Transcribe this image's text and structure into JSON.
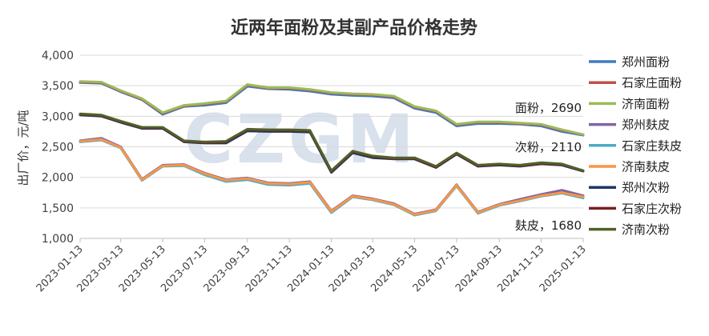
{
  "chart_data": {
    "type": "line",
    "title": "近两年面粉及其副产品价格走势",
    "ylabel": "出厂价，元/吨",
    "ylim": [
      1000,
      4000
    ],
    "yticks": [
      "1,000",
      "1,500",
      "2,000",
      "2,500",
      "3,000",
      "3,500",
      "4,000"
    ],
    "xticks": [
      "2023-01-13",
      "2023-03-13",
      "2023-05-13",
      "2023-07-13",
      "2023-09-13",
      "2023-11-13",
      "2024-01-13",
      "2024-03-13",
      "2024-05-13",
      "2024-07-13",
      "2024-09-13",
      "2024-11-13",
      "2025-01-13"
    ],
    "grid": true,
    "legend_position": "right",
    "watermark": "CZGM",
    "annotations": [
      {
        "text": "面粉，2690",
        "y": 2690
      },
      {
        "text": "次粉，2110",
        "y": 2110
      },
      {
        "text": "麸皮，1680",
        "y": 1680
      }
    ],
    "series": [
      {
        "name": "郑州面粉",
        "color": "#3E7CC4",
        "group": "flour",
        "x": [
          "2023-01-13",
          "2023-02-13",
          "2023-03-13",
          "2023-04-13",
          "2023-05-13",
          "2023-06-13",
          "2023-07-13",
          "2023-08-13",
          "2023-09-13",
          "2023-10-13",
          "2023-11-13",
          "2023-12-13",
          "2024-01-13",
          "2024-02-13",
          "2024-03-13",
          "2024-04-13",
          "2024-05-13",
          "2024-06-13",
          "2024-07-13",
          "2024-08-13",
          "2024-09-13",
          "2024-10-13",
          "2024-11-13",
          "2024-12-13",
          "2025-01-13"
        ],
        "y": [
          3550,
          3540,
          3400,
          3270,
          3030,
          3160,
          3180,
          3220,
          3490,
          3450,
          3440,
          3410,
          3360,
          3340,
          3330,
          3300,
          3130,
          3060,
          2840,
          2880,
          2880,
          2870,
          2840,
          2750,
          2690
        ]
      },
      {
        "name": "石家庄面粉",
        "color": "#C0504D",
        "group": "flour",
        "x": [
          "2023-01-13",
          "2023-02-13",
          "2023-03-13",
          "2023-04-13",
          "2023-05-13",
          "2023-06-13",
          "2023-07-13",
          "2023-08-13",
          "2023-09-13",
          "2023-10-13",
          "2023-11-13",
          "2023-12-13",
          "2024-01-13",
          "2024-02-13",
          "2024-03-13",
          "2024-04-13",
          "2024-05-13",
          "2024-06-13",
          "2024-07-13",
          "2024-08-13",
          "2024-09-13",
          "2024-10-13",
          "2024-11-13",
          "2024-12-13",
          "2025-01-13"
        ],
        "y": [
          3560,
          3550,
          3410,
          3280,
          3050,
          3170,
          3200,
          3240,
          3510,
          3460,
          3460,
          3430,
          3380,
          3360,
          3350,
          3320,
          3150,
          3080,
          2860,
          2900,
          2900,
          2880,
          2860,
          2770,
          2700
        ]
      },
      {
        "name": "济南面粉",
        "color": "#9BBB59",
        "group": "flour",
        "x": [
          "2023-01-13",
          "2023-02-13",
          "2023-03-13",
          "2023-04-13",
          "2023-05-13",
          "2023-06-13",
          "2023-07-13",
          "2023-08-13",
          "2023-09-13",
          "2023-10-13",
          "2023-11-13",
          "2023-12-13",
          "2024-01-13",
          "2024-02-13",
          "2024-03-13",
          "2024-04-13",
          "2024-05-13",
          "2024-06-13",
          "2024-07-13",
          "2024-08-13",
          "2024-09-13",
          "2024-10-13",
          "2024-11-13",
          "2024-12-13",
          "2025-01-13"
        ],
        "y": [
          3570,
          3560,
          3420,
          3290,
          3060,
          3180,
          3210,
          3250,
          3520,
          3470,
          3470,
          3440,
          3390,
          3370,
          3360,
          3330,
          3160,
          3090,
          2870,
          2910,
          2910,
          2890,
          2870,
          2780,
          2700
        ]
      },
      {
        "name": "郑州麸皮",
        "color": "#8064A2",
        "group": "bran",
        "x": [
          "2023-01-13",
          "2023-02-13",
          "2023-03-13",
          "2023-04-13",
          "2023-05-13",
          "2023-06-13",
          "2023-07-13",
          "2023-08-13",
          "2023-09-13",
          "2023-10-13",
          "2023-11-13",
          "2023-12-13",
          "2024-01-13",
          "2024-02-13",
          "2024-03-13",
          "2024-04-13",
          "2024-05-13",
          "2024-06-13",
          "2024-07-13",
          "2024-08-13",
          "2024-09-13",
          "2024-10-13",
          "2024-11-13",
          "2024-12-13",
          "2025-01-13"
        ],
        "y": [
          2600,
          2640,
          2500,
          1970,
          2200,
          2210,
          2070,
          1960,
          1990,
          1910,
          1900,
          1930,
          1450,
          1700,
          1650,
          1570,
          1400,
          1470,
          1880,
          1430,
          1560,
          1640,
          1720,
          1790,
          1700
        ]
      },
      {
        "name": "石家庄麸皮",
        "color": "#4BACC6",
        "group": "bran",
        "x": [
          "2023-01-13",
          "2023-02-13",
          "2023-03-13",
          "2023-04-13",
          "2023-05-13",
          "2023-06-13",
          "2023-07-13",
          "2023-08-13",
          "2023-09-13",
          "2023-10-13",
          "2023-11-13",
          "2023-12-13",
          "2024-01-13",
          "2024-02-13",
          "2024-03-13",
          "2024-04-13",
          "2024-05-13",
          "2024-06-13",
          "2024-07-13",
          "2024-08-13",
          "2024-09-13",
          "2024-10-13",
          "2024-11-13",
          "2024-12-13",
          "2025-01-13"
        ],
        "y": [
          2580,
          2610,
          2480,
          1950,
          2180,
          2190,
          2040,
          1930,
          1960,
          1880,
          1870,
          1900,
          1420,
          1680,
          1630,
          1550,
          1380,
          1450,
          1860,
          1410,
          1540,
          1610,
          1690,
          1740,
          1660
        ]
      },
      {
        "name": "济南麸皮",
        "color": "#F79646",
        "group": "bran",
        "x": [
          "2023-01-13",
          "2023-02-13",
          "2023-03-13",
          "2023-04-13",
          "2023-05-13",
          "2023-06-13",
          "2023-07-13",
          "2023-08-13",
          "2023-09-13",
          "2023-10-13",
          "2023-11-13",
          "2023-12-13",
          "2024-01-13",
          "2024-02-13",
          "2024-03-13",
          "2024-04-13",
          "2024-05-13",
          "2024-06-13",
          "2024-07-13",
          "2024-08-13",
          "2024-09-13",
          "2024-10-13",
          "2024-11-13",
          "2024-12-13",
          "2025-01-13"
        ],
        "y": [
          2590,
          2620,
          2490,
          1960,
          2190,
          2200,
          2060,
          1950,
          1980,
          1900,
          1890,
          1920,
          1440,
          1690,
          1640,
          1560,
          1390,
          1460,
          1870,
          1420,
          1550,
          1620,
          1700,
          1750,
          1680
        ]
      },
      {
        "name": "郑州次粉",
        "color": "#1F3864",
        "group": "shorts",
        "x": [
          "2023-01-13",
          "2023-02-13",
          "2023-03-13",
          "2023-04-13",
          "2023-05-13",
          "2023-06-13",
          "2023-07-13",
          "2023-08-13",
          "2023-09-13",
          "2023-10-13",
          "2023-11-13",
          "2023-12-13",
          "2024-01-13",
          "2024-02-13",
          "2024-03-13",
          "2024-04-13",
          "2024-05-13",
          "2024-06-13",
          "2024-07-13",
          "2024-08-13",
          "2024-09-13",
          "2024-10-13",
          "2024-11-13",
          "2024-12-13",
          "2025-01-13"
        ],
        "y": [
          3020,
          3000,
          2900,
          2800,
          2800,
          2580,
          2560,
          2560,
          2760,
          2750,
          2750,
          2740,
          2080,
          2400,
          2320,
          2300,
          2300,
          2160,
          2380,
          2180,
          2200,
          2180,
          2220,
          2200,
          2100
        ]
      },
      {
        "name": "石家庄次粉",
        "color": "#7B1F1F",
        "group": "shorts",
        "x": [
          "2023-01-13",
          "2023-02-13",
          "2023-03-13",
          "2023-04-13",
          "2023-05-13",
          "2023-06-13",
          "2023-07-13",
          "2023-08-13",
          "2023-09-13",
          "2023-10-13",
          "2023-11-13",
          "2023-12-13",
          "2024-01-13",
          "2024-02-13",
          "2024-03-13",
          "2024-04-13",
          "2024-05-13",
          "2024-06-13",
          "2024-07-13",
          "2024-08-13",
          "2024-09-13",
          "2024-10-13",
          "2024-11-13",
          "2024-12-13",
          "2025-01-13"
        ],
        "y": [
          3030,
          3010,
          2910,
          2810,
          2810,
          2590,
          2570,
          2580,
          2780,
          2770,
          2770,
          2760,
          2100,
          2420,
          2340,
          2310,
          2310,
          2170,
          2390,
          2190,
          2210,
          2190,
          2230,
          2210,
          2110
        ]
      },
      {
        "name": "济南次粉",
        "color": "#4F6228",
        "group": "shorts",
        "x": [
          "2023-01-13",
          "2023-02-13",
          "2023-03-13",
          "2023-04-13",
          "2023-05-13",
          "2023-06-13",
          "2023-07-13",
          "2023-08-13",
          "2023-09-13",
          "2023-10-13",
          "2023-11-13",
          "2023-12-13",
          "2024-01-13",
          "2024-02-13",
          "2024-03-13",
          "2024-04-13",
          "2024-05-13",
          "2024-06-13",
          "2024-07-13",
          "2024-08-13",
          "2024-09-13",
          "2024-10-13",
          "2024-11-13",
          "2024-12-13",
          "2025-01-13"
        ],
        "y": [
          3040,
          3020,
          2920,
          2820,
          2820,
          2600,
          2580,
          2590,
          2790,
          2780,
          2780,
          2770,
          2110,
          2430,
          2350,
          2320,
          2320,
          2180,
          2400,
          2200,
          2220,
          2200,
          2240,
          2220,
          2110
        ]
      }
    ]
  }
}
